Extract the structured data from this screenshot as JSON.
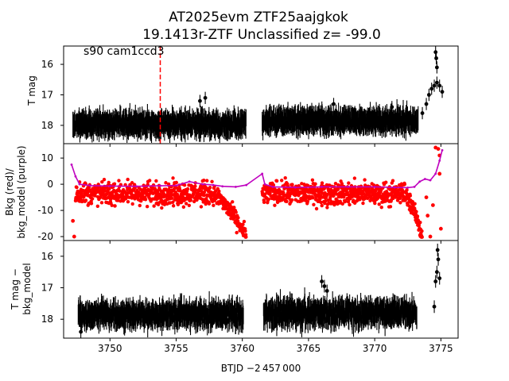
{
  "figure": {
    "title_line1": "AT2025evm  ZTF25aajgkok",
    "title_line2": "19.1413r-ZTF Unclassified z= -99.0",
    "xlabel": "BTJD −2 457 000"
  },
  "chart_data": [
    {
      "type": "scatter",
      "panel": "top",
      "ylabel": "T mag",
      "annotation": "s90 cam1ccd3",
      "y_inverted": true,
      "xlim": [
        3746.5,
        3776.3
      ],
      "ylim": [
        18.6,
        15.4
      ],
      "xticks": [
        3750,
        3755,
        3760,
        3765,
        3770,
        3775
      ],
      "yticks": [
        16,
        17,
        18
      ],
      "vline_x": 3753.8,
      "vline_color": "#ff0000",
      "series": [
        {
          "color": "#000000",
          "segments": [
            {
              "x_range": [
                3747.2,
                3760.3
              ],
              "y_center": 17.95,
              "scatter": 0.35,
              "errorbar": 0.3
            },
            {
              "x_range": [
                3761.5,
                3773.3
              ],
              "y_center": 17.85,
              "scatter": 0.35,
              "errorbar": 0.3
            }
          ],
          "points": [
            {
              "x": 3756.8,
              "y": 17.2
            },
            {
              "x": 3757.2,
              "y": 17.1
            },
            {
              "x": 3766.9,
              "y": 17.3
            },
            {
              "x": 3771.3,
              "y": 17.4
            },
            {
              "x": 3773.6,
              "y": 17.6
            },
            {
              "x": 3773.9,
              "y": 17.3
            },
            {
              "x": 3774.1,
              "y": 17.0
            },
            {
              "x": 3774.3,
              "y": 16.8
            },
            {
              "x": 3774.5,
              "y": 16.7
            },
            {
              "x": 3774.7,
              "y": 16.6
            },
            {
              "x": 3774.9,
              "y": 16.7
            },
            {
              "x": 3775.1,
              "y": 16.9
            },
            {
              "x": 3774.6,
              "y": 15.6
            },
            {
              "x": 3774.65,
              "y": 15.8
            },
            {
              "x": 3774.7,
              "y": 16.1
            }
          ]
        }
      ]
    },
    {
      "type": "scatter",
      "panel": "middle",
      "ylabel_line1": "Bkg (red)/",
      "ylabel_line2": "bkg_model (purple)",
      "xlim": [
        3746.5,
        3776.3
      ],
      "ylim": [
        -21.5,
        15.5
      ],
      "xticks": [
        3750,
        3755,
        3760,
        3765,
        3770,
        3775
      ],
      "yticks": [
        -20,
        -10,
        0,
        10
      ],
      "series": [
        {
          "name": "Bkg",
          "color": "#ff0000",
          "segments": [
            {
              "x_range": [
                3747.4,
                3757.8
              ],
              "y_center": -3.5,
              "scatter": 6.5
            },
            {
              "x_range": [
                3757.8,
                3760.3
              ],
              "y_start": -4.0,
              "y_end": -20.0,
              "scatter": 5.0
            },
            {
              "x_range": [
                3761.5,
                3772.3
              ],
              "y_center": -3.5,
              "scatter": 6.5
            },
            {
              "x_range": [
                3772.3,
                3773.6
              ],
              "y_start": -4.0,
              "y_end": -20.0,
              "scatter": 4.5
            }
          ],
          "points": [
            {
              "x": 3747.3,
              "y": -20.0
            },
            {
              "x": 3747.2,
              "y": -14.0
            },
            {
              "x": 3773.9,
              "y": -5.0
            },
            {
              "x": 3774.0,
              "y": -12.0
            },
            {
              "x": 3774.4,
              "y": -8.0
            },
            {
              "x": 3774.6,
              "y": 14.0
            },
            {
              "x": 3774.8,
              "y": 13.5
            },
            {
              "x": 3774.9,
              "y": 11.0
            },
            {
              "x": 3774.2,
              "y": -20.0
            },
            {
              "x": 3774.9,
              "y": 4.0
            },
            {
              "x": 3775.0,
              "y": -17.0
            }
          ]
        },
        {
          "name": "bkg_model",
          "color": "#bf00bf",
          "x": [
            3747.1,
            3747.4,
            3747.7,
            3748.5,
            3750.0,
            3752.0,
            3753.8,
            3755.0,
            3756.0,
            3757.0,
            3757.8,
            3758.5,
            3759.5,
            3760.3,
            3761.5,
            3761.7,
            3762.3,
            3764.0,
            3766.0,
            3768.0,
            3770.0,
            3771.5,
            3772.5,
            3773.0,
            3773.4,
            3773.8,
            3774.2,
            3774.6,
            3774.9,
            3775.1
          ],
          "y": [
            7.5,
            3.0,
            0.0,
            -0.5,
            -0.7,
            -0.8,
            -0.6,
            -0.5,
            1.0,
            0.0,
            -0.3,
            -0.8,
            -1.0,
            -0.3,
            4.0,
            0.0,
            -1.0,
            -1.2,
            -1.0,
            -1.0,
            -1.0,
            -1.2,
            -1.3,
            -1.0,
            1.0,
            2.0,
            1.5,
            4.0,
            9.0,
            13.0
          ]
        }
      ]
    },
    {
      "type": "scatter",
      "panel": "bottom",
      "ylabel_line1": "T mag −",
      "ylabel_line2": "bkg_model",
      "y_inverted": true,
      "xlim": [
        3746.5,
        3776.3
      ],
      "ylim": [
        18.6,
        15.5
      ],
      "xticks": [
        3750,
        3755,
        3760,
        3765,
        3770,
        3775
      ],
      "xtick_labels": [
        "3750",
        "3755",
        "3760",
        "3765",
        "3770",
        "3775"
      ],
      "yticks": [
        16,
        17,
        18
      ],
      "series": [
        {
          "color": "#000000",
          "segments": [
            {
              "x_range": [
                3747.6,
                3760.1
              ],
              "y_center": 17.85,
              "scatter": 0.4,
              "errorbar": 0.3
            },
            {
              "x_range": [
                3761.6,
                3773.2
              ],
              "y_center": 17.8,
              "scatter": 0.45,
              "errorbar": 0.3
            }
          ],
          "points": [
            {
              "x": 3747.8,
              "y": 18.4
            },
            {
              "x": 3766.0,
              "y": 16.8
            },
            {
              "x": 3766.2,
              "y": 16.95
            },
            {
              "x": 3766.4,
              "y": 17.1
            },
            {
              "x": 3774.5,
              "y": 17.6
            },
            {
              "x": 3774.6,
              "y": 16.8
            },
            {
              "x": 3774.7,
              "y": 16.5
            },
            {
              "x": 3774.75,
              "y": 15.8
            },
            {
              "x": 3774.8,
              "y": 16.1
            },
            {
              "x": 3774.9,
              "y": 16.7
            }
          ]
        }
      ]
    }
  ]
}
